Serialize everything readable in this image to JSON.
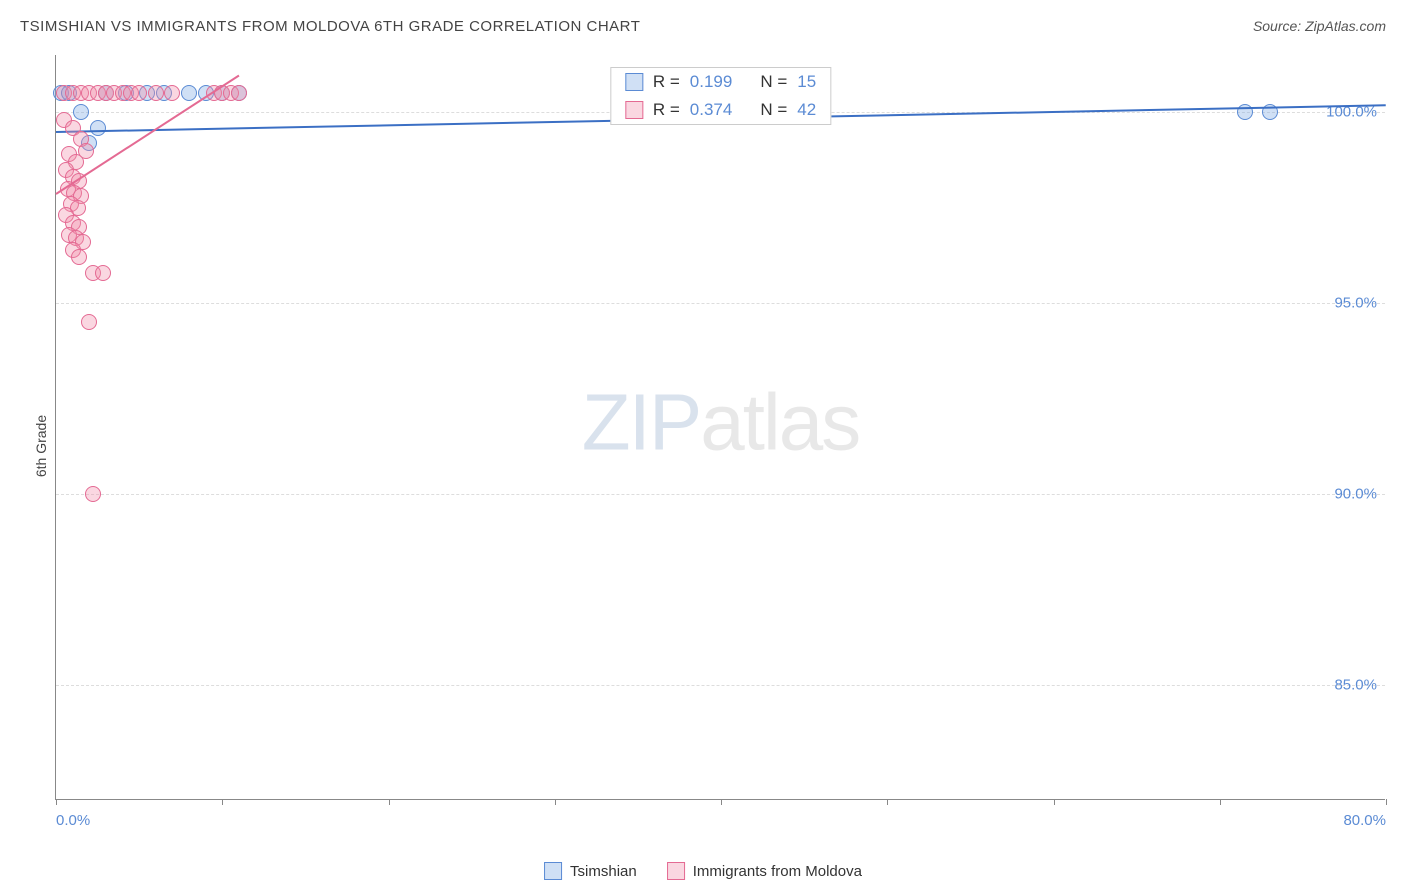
{
  "title": "TSIMSHIAN VS IMMIGRANTS FROM MOLDOVA 6TH GRADE CORRELATION CHART",
  "source": "Source: ZipAtlas.com",
  "ylabel": "6th Grade",
  "watermark_a": "ZIP",
  "watermark_b": "atlas",
  "chart": {
    "type": "scatter",
    "xlim": [
      0,
      80
    ],
    "ylim": [
      82,
      101.5
    ],
    "xticks": [
      0,
      10,
      20,
      30,
      40,
      50,
      60,
      70,
      80
    ],
    "xtick_labels_shown": {
      "0": "0.0%",
      "80": "80.0%"
    },
    "yticks": [
      85,
      90,
      95,
      100
    ],
    "ytick_labels": [
      "85.0%",
      "90.0%",
      "95.0%",
      "100.0%"
    ],
    "background_color": "#ffffff",
    "grid_color": "#dddddd",
    "axis_color": "#888888",
    "tick_label_color": "#5b8bd4",
    "marker_radius": 8,
    "marker_stroke_width": 1.5,
    "trend_line_width": 2
  },
  "series": [
    {
      "name": "Tsimshian",
      "fill_color": "rgba(120,165,225,0.35)",
      "stroke_color": "#5b8bd4",
      "line_color": "#3b6fc4",
      "r_value": "0.199",
      "n_value": "15",
      "trend": {
        "x1": 0,
        "y1": 99.5,
        "x2": 80,
        "y2": 100.2
      },
      "points": [
        [
          0.3,
          100.5
        ],
        [
          0.8,
          100.5
        ],
        [
          1.5,
          100.0
        ],
        [
          2.0,
          99.2
        ],
        [
          2.5,
          99.6
        ],
        [
          3.0,
          100.5
        ],
        [
          4.2,
          100.5
        ],
        [
          5.5,
          100.5
        ],
        [
          6.5,
          100.5
        ],
        [
          8.0,
          100.5
        ],
        [
          9.0,
          100.5
        ],
        [
          10.0,
          100.5
        ],
        [
          11.0,
          100.5
        ],
        [
          71.5,
          100.0
        ],
        [
          73.0,
          100.0
        ]
      ]
    },
    {
      "name": "Immigrants from Moldova",
      "fill_color": "rgba(240,140,170,0.35)",
      "stroke_color": "#e46a93",
      "line_color": "#e46a93",
      "r_value": "0.374",
      "n_value": "42",
      "trend": {
        "x1": 0,
        "y1": 97.9,
        "x2": 11,
        "y2": 101.0
      },
      "points": [
        [
          0.5,
          100.5
        ],
        [
          1.0,
          100.5
        ],
        [
          1.5,
          100.5
        ],
        [
          2.0,
          100.5
        ],
        [
          2.5,
          100.5
        ],
        [
          3.0,
          100.5
        ],
        [
          3.5,
          100.5
        ],
        [
          4.0,
          100.5
        ],
        [
          4.5,
          100.5
        ],
        [
          5.0,
          100.5
        ],
        [
          6.0,
          100.5
        ],
        [
          7.0,
          100.5
        ],
        [
          9.5,
          100.5
        ],
        [
          10.0,
          100.5
        ],
        [
          10.5,
          100.5
        ],
        [
          11.0,
          100.5
        ],
        [
          0.5,
          99.8
        ],
        [
          1.0,
          99.6
        ],
        [
          1.5,
          99.3
        ],
        [
          1.8,
          99.0
        ],
        [
          0.8,
          98.9
        ],
        [
          1.2,
          98.7
        ],
        [
          0.6,
          98.5
        ],
        [
          1.0,
          98.3
        ],
        [
          1.4,
          98.2
        ],
        [
          0.7,
          98.0
        ],
        [
          1.1,
          97.9
        ],
        [
          1.5,
          97.8
        ],
        [
          0.9,
          97.6
        ],
        [
          1.3,
          97.5
        ],
        [
          0.6,
          97.3
        ],
        [
          1.0,
          97.1
        ],
        [
          1.4,
          97.0
        ],
        [
          0.8,
          96.8
        ],
        [
          1.2,
          96.7
        ],
        [
          1.6,
          96.6
        ],
        [
          1.0,
          96.4
        ],
        [
          1.4,
          96.2
        ],
        [
          2.2,
          95.8
        ],
        [
          2.8,
          95.8
        ],
        [
          2.0,
          94.5
        ],
        [
          2.2,
          90.0
        ]
      ]
    }
  ],
  "stats_labels": {
    "r": "R =",
    "n": "N ="
  },
  "legend": {
    "items": [
      "Tsimshian",
      "Immigrants from Moldova"
    ]
  }
}
